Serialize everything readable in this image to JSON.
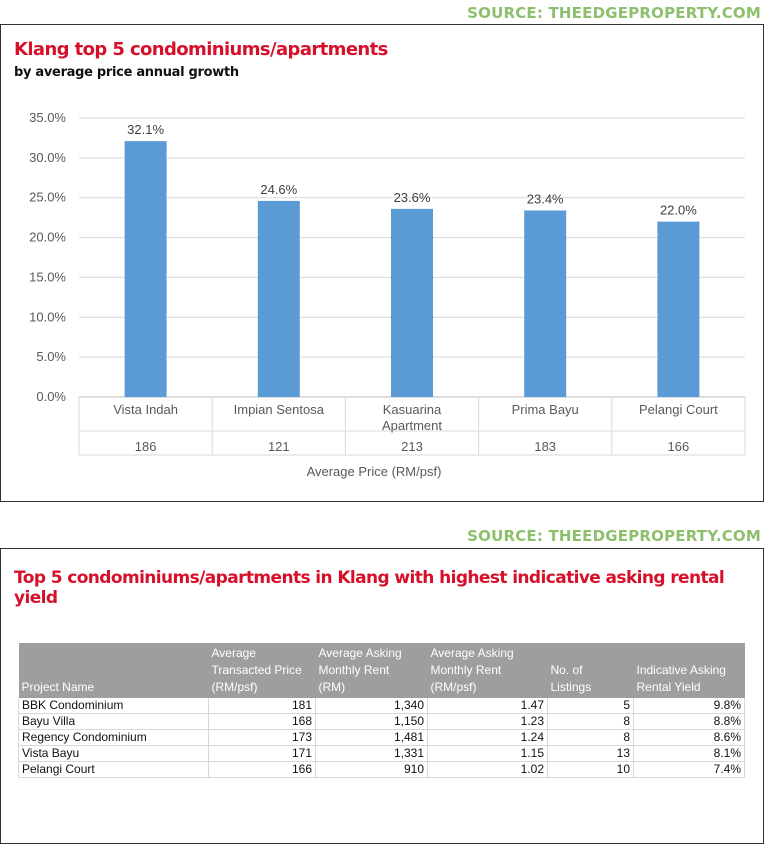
{
  "source_label": "SOURCE: THEEDGEPROPERTY.COM",
  "chart_data": {
    "type": "bar",
    "title": "Klang top 5 condominiums/apartments",
    "subtitle": "by average price annual growth",
    "categories": [
      "Vista Indah",
      "Impian Sentosa",
      "Kasuarina Apartment",
      "Prima Bayu",
      "Pelangi Court"
    ],
    "category_lines": [
      [
        "Vista Indah"
      ],
      [
        "Impian Sentosa"
      ],
      [
        "Kasuarina",
        "Apartment"
      ],
      [
        "Prima Bayu"
      ],
      [
        "Pelangi Court"
      ]
    ],
    "secondary_labels": [
      "186",
      "121",
      "213",
      "183",
      "166"
    ],
    "values": [
      32.1,
      24.6,
      23.6,
      23.4,
      22.0
    ],
    "data_labels": [
      "32.1%",
      "24.6%",
      "23.6%",
      "23.4%",
      "22.0%"
    ],
    "xlabel": "Average Price (RM/psf)",
    "ylabel": "",
    "ylim": [
      0,
      35
    ],
    "yticks": [
      "0.0%",
      "5.0%",
      "10.0%",
      "15.0%",
      "20.0%",
      "25.0%",
      "30.0%",
      "35.0%"
    ],
    "grid": true,
    "bar_color": "#5b9bd5"
  },
  "table": {
    "title": "Top 5 condominiums/apartments in Klang with highest indicative asking rental yield",
    "columns": [
      [
        "Project Name"
      ],
      [
        "Average",
        "Transacted Price",
        "(RM/psf)"
      ],
      [
        "Average Asking",
        "Monthly Rent",
        "(RM)"
      ],
      [
        "Average Asking",
        "Monthly Rent",
        "(RM/psf)"
      ],
      [
        "No. of",
        "Listings"
      ],
      [
        "Indicative Asking",
        "Rental Yield"
      ]
    ],
    "rows": [
      [
        "BBK Condominium",
        "181",
        "1,340",
        "1.47",
        "5",
        "9.8%"
      ],
      [
        "Bayu Villa",
        "168",
        "1,150",
        "1.23",
        "8",
        "8.8%"
      ],
      [
        "Regency Condominium",
        "173",
        "1,481",
        "1.24",
        "8",
        "8.6%"
      ],
      [
        "Vista Bayu",
        "171",
        "1,331",
        "1.15",
        "13",
        "8.1%"
      ],
      [
        "Pelangi Court",
        "166",
        "910",
        "1.02",
        "10",
        "7.4%"
      ]
    ],
    "header_color": "#9e9e9e"
  }
}
